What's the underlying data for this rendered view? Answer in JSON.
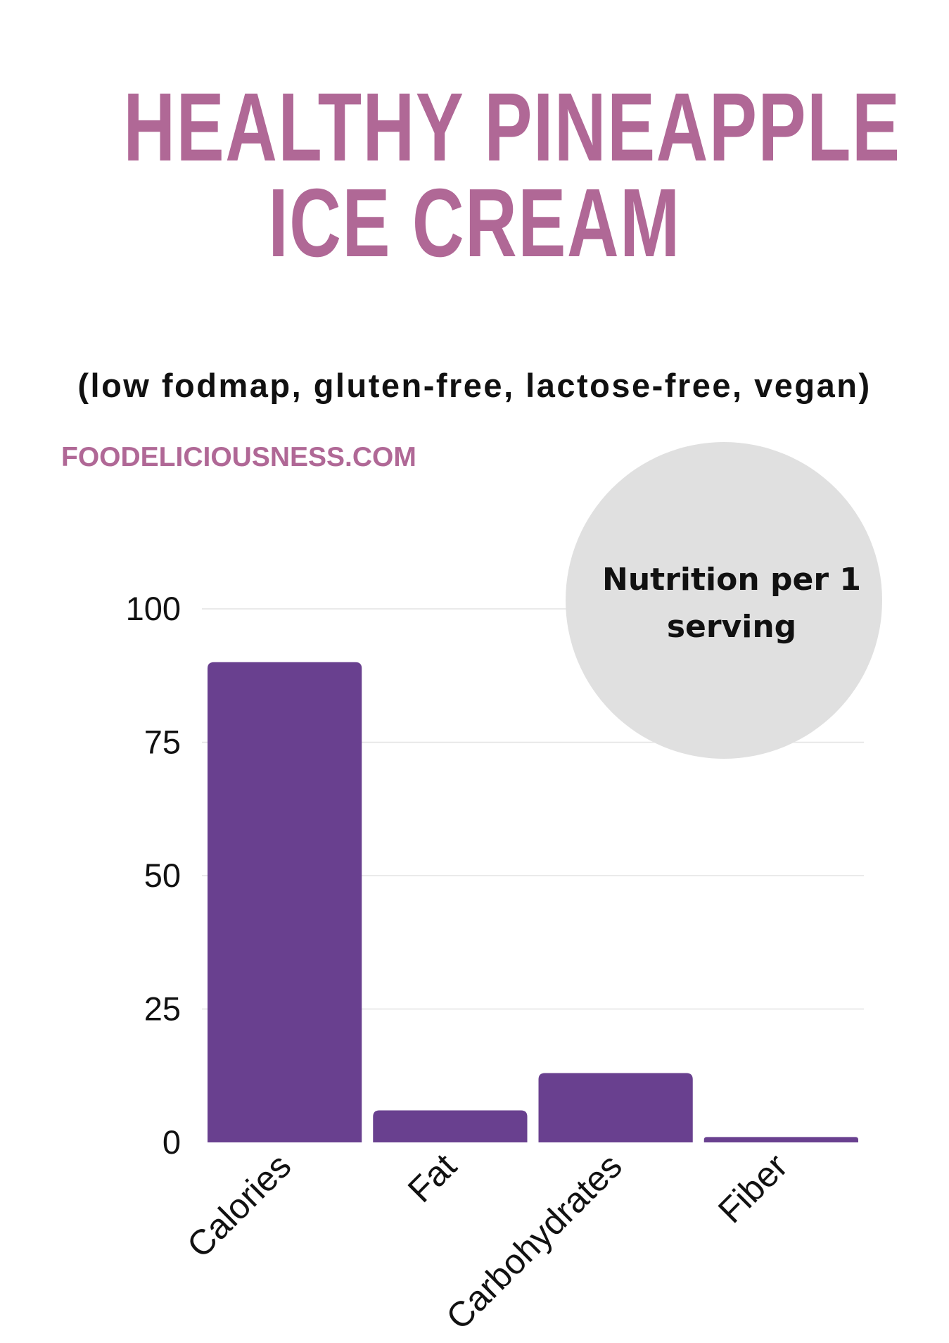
{
  "header": {
    "title_line1": "HEALTHY PINEAPPLE",
    "title_line2": "ICE CREAM",
    "subtitle": "(low fodmap, gluten-free, lactose-free, vegan)",
    "site": "FOODELICIOUSNESS.COM",
    "badge_text": "Nutrition per 1 serving"
  },
  "colors": {
    "title": "#b06896",
    "site": "#b06896",
    "bar": "#69408f",
    "grid": "#e3e3e3",
    "badge": "#e0e0e0"
  },
  "chart_data": {
    "type": "bar",
    "categories": [
      "Calories",
      "Fat",
      "Carbohydrates",
      "Fiber"
    ],
    "values": [
      90,
      6,
      13,
      1
    ],
    "yticks": [
      0,
      25,
      50,
      75,
      100
    ],
    "ylim": [
      0,
      100
    ],
    "grid": true,
    "legend": "none"
  }
}
